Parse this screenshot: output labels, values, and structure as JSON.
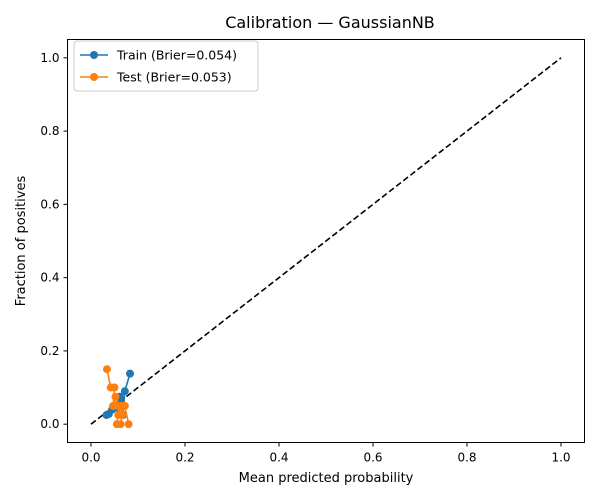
{
  "chart_data": {
    "type": "line",
    "title": "Calibration — GaussianNB",
    "xlabel": "Mean predicted probability",
    "ylabel": "Fraction of positives",
    "xlim": [
      -0.05,
      1.05
    ],
    "ylim": [
      -0.05,
      1.05
    ],
    "xticks": [
      0.0,
      0.2,
      0.4,
      0.6,
      0.8,
      1.0
    ],
    "xtick_labels": [
      "0.0",
      "0.2",
      "0.4",
      "0.6",
      "0.8",
      "1.0"
    ],
    "yticks": [
      0.0,
      0.2,
      0.4,
      0.6,
      0.8,
      1.0
    ],
    "ytick_labels": [
      "0.0",
      "0.2",
      "0.4",
      "0.6",
      "0.8",
      "1.0"
    ],
    "grid": false,
    "legend_position": "top-left",
    "reference_line": {
      "x": [
        0,
        1
      ],
      "y": [
        0,
        1
      ],
      "style": "dashed",
      "color": "#000000"
    },
    "series": [
      {
        "name": "Train (Brier=0.054)",
        "color": "#1f77b4",
        "x": [
          0.033,
          0.038,
          0.045,
          0.052,
          0.058,
          0.061,
          0.064,
          0.068,
          0.072,
          0.083
        ],
        "y": [
          0.025,
          0.028,
          0.04,
          0.045,
          0.05,
          0.075,
          0.06,
          0.025,
          0.09,
          0.138
        ]
      },
      {
        "name": "Test (Brier=0.053)",
        "color": "#ff7f0e",
        "x": [
          0.034,
          0.042,
          0.05,
          0.047,
          0.052,
          0.056,
          0.06,
          0.055,
          0.063,
          0.066,
          0.07,
          0.063,
          0.058,
          0.072,
          0.08
        ],
        "y": [
          0.15,
          0.1,
          0.1,
          0.05,
          0.075,
          0.05,
          0.05,
          0.0,
          0.0,
          0.025,
          0.05,
          0.05,
          0.025,
          0.05,
          0.0
        ]
      }
    ]
  }
}
